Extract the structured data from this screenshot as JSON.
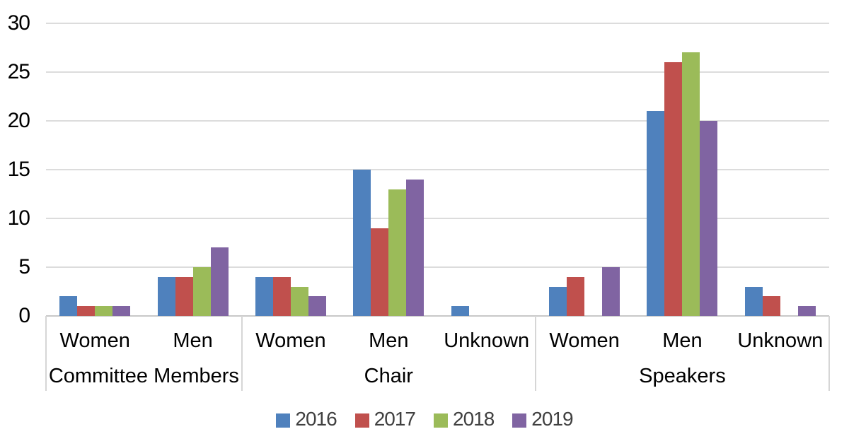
{
  "chart_data": {
    "type": "bar",
    "title": "",
    "y_axis": {
      "min": 0,
      "max": 30,
      "step": 5,
      "ticks": [
        0,
        5,
        10,
        15,
        20,
        25,
        30
      ]
    },
    "groups": [
      {
        "label": "Committee Members",
        "categories": [
          "Women",
          "Men"
        ]
      },
      {
        "label": "Chair",
        "categories": [
          "Women",
          "Men",
          "Unknown"
        ]
      },
      {
        "label": "Speakers",
        "categories": [
          "Women",
          "Men",
          "Unknown"
        ]
      }
    ],
    "category_slots": [
      "Women",
      "Men",
      "Women",
      "Men",
      "Unknown",
      "Women",
      "Men",
      "Unknown"
    ],
    "series": [
      {
        "name": "2016",
        "color": "#4F81BD",
        "values": [
          2,
          4,
          4,
          15,
          1,
          3,
          21,
          3
        ]
      },
      {
        "name": "2017",
        "color": "#C0504D",
        "values": [
          1,
          4,
          4,
          9,
          0,
          4,
          26,
          2
        ]
      },
      {
        "name": "2018",
        "color": "#9BBB59",
        "values": [
          1,
          5,
          3,
          13,
          0,
          0,
          27,
          0
        ]
      },
      {
        "name": "2019",
        "color": "#8064A2",
        "values": [
          1,
          7,
          2,
          14,
          0,
          5,
          20,
          1
        ]
      }
    ],
    "legend": [
      "2016",
      "2017",
      "2018",
      "2019"
    ],
    "legend_position": "bottom",
    "grid": true,
    "colors": {
      "gridline": "#DCDCDC",
      "axis_line": "#C8C8C8",
      "separator": "#D6D6D6",
      "tick_text": "#000000",
      "category_text": "#000000",
      "legend_text": "#404040",
      "background": "#FFFFFF"
    }
  }
}
